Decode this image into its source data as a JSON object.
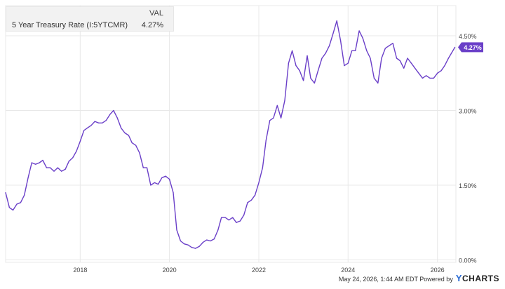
{
  "legend": {
    "column_header": "VAL",
    "series_name": "5 Year Treasury Rate (I:5YTCMR)",
    "series_value": "4.27%"
  },
  "footer": {
    "timestamp": "May 24, 2026, 1:44 AM EDT Powered by",
    "brand_y": "Y",
    "brand_rest": "CHARTS"
  },
  "colors": {
    "line": "#6a3fc8",
    "gridline": "#e8e8e8",
    "badge": "#6a3fc8"
  },
  "chart_data": {
    "type": "line",
    "title": "",
    "xlabel": "",
    "ylabel": "",
    "ylim": [
      -0.05,
      5.05
    ],
    "xlim": [
      "2016-05-01",
      "2026-06-01"
    ],
    "y_ticks": [
      {
        "value": 0.0,
        "label": "0.00%"
      },
      {
        "value": 1.5,
        "label": "1.50%"
      },
      {
        "value": 3.0,
        "label": "3.00%"
      },
      {
        "value": 4.5,
        "label": "4.50%"
      }
    ],
    "x_ticks": [
      {
        "value": "2018-01-01",
        "label": "2018"
      },
      {
        "value": "2020-01-01",
        "label": "2020"
      },
      {
        "value": "2022-01-01",
        "label": "2022"
      },
      {
        "value": "2024-01-01",
        "label": "2024"
      },
      {
        "value": "2026-01-01",
        "label": "2026"
      }
    ],
    "grid": {
      "horizontal": true,
      "vertical": true
    },
    "last_value_label": "4.27%",
    "series": [
      {
        "name": "5 Year Treasury Rate (I:5YTCMR)",
        "x": [
          "2016-05-01",
          "2016-06-01",
          "2016-07-01",
          "2016-08-01",
          "2016-09-01",
          "2016-10-01",
          "2016-11-01",
          "2016-12-01",
          "2017-01-01",
          "2017-02-01",
          "2017-03-01",
          "2017-04-01",
          "2017-05-01",
          "2017-06-01",
          "2017-07-01",
          "2017-08-01",
          "2017-09-01",
          "2017-10-01",
          "2017-11-01",
          "2017-12-01",
          "2018-01-01",
          "2018-02-01",
          "2018-03-01",
          "2018-04-01",
          "2018-05-01",
          "2018-06-01",
          "2018-07-01",
          "2018-08-01",
          "2018-09-01",
          "2018-10-01",
          "2018-11-01",
          "2018-12-01",
          "2019-01-01",
          "2019-02-01",
          "2019-03-01",
          "2019-04-01",
          "2019-05-01",
          "2019-06-01",
          "2019-07-01",
          "2019-08-01",
          "2019-09-01",
          "2019-10-01",
          "2019-11-01",
          "2019-12-01",
          "2020-01-01",
          "2020-02-01",
          "2020-03-01",
          "2020-04-01",
          "2020-05-01",
          "2020-06-01",
          "2020-07-01",
          "2020-08-01",
          "2020-09-01",
          "2020-10-01",
          "2020-11-01",
          "2020-12-01",
          "2021-01-01",
          "2021-02-01",
          "2021-03-01",
          "2021-04-01",
          "2021-05-01",
          "2021-06-01",
          "2021-07-01",
          "2021-08-01",
          "2021-09-01",
          "2021-10-01",
          "2021-11-01",
          "2021-12-01",
          "2022-01-01",
          "2022-02-01",
          "2022-03-01",
          "2022-04-01",
          "2022-05-01",
          "2022-06-01",
          "2022-07-01",
          "2022-08-01",
          "2022-09-01",
          "2022-10-01",
          "2022-11-01",
          "2022-12-01",
          "2023-01-01",
          "2023-02-01",
          "2023-03-01",
          "2023-04-01",
          "2023-05-01",
          "2023-06-01",
          "2023-07-01",
          "2023-08-01",
          "2023-09-01",
          "2023-10-01",
          "2023-11-01",
          "2023-12-01",
          "2024-01-01",
          "2024-02-01",
          "2024-03-01",
          "2024-04-01",
          "2024-05-01",
          "2024-06-01",
          "2024-07-01",
          "2024-08-01",
          "2024-09-01",
          "2024-10-01",
          "2024-11-01",
          "2024-12-01",
          "2025-01-01",
          "2025-02-01",
          "2025-03-01",
          "2025-04-01",
          "2025-05-01",
          "2025-06-01",
          "2025-07-01",
          "2025-08-01",
          "2025-09-01",
          "2025-10-01",
          "2025-11-01",
          "2025-12-01",
          "2026-01-01",
          "2026-02-01",
          "2026-03-01",
          "2026-04-01",
          "2026-05-24"
        ],
        "values": [
          1.35,
          1.05,
          1.0,
          1.12,
          1.15,
          1.3,
          1.65,
          1.95,
          1.92,
          1.95,
          2.0,
          1.85,
          1.85,
          1.78,
          1.85,
          1.78,
          1.82,
          1.98,
          2.05,
          2.18,
          2.38,
          2.6,
          2.65,
          2.7,
          2.78,
          2.75,
          2.75,
          2.8,
          2.92,
          3.0,
          2.85,
          2.65,
          2.55,
          2.5,
          2.35,
          2.3,
          2.15,
          1.85,
          1.85,
          1.5,
          1.55,
          1.52,
          1.65,
          1.68,
          1.62,
          1.35,
          0.6,
          0.38,
          0.32,
          0.3,
          0.25,
          0.23,
          0.27,
          0.35,
          0.4,
          0.38,
          0.42,
          0.6,
          0.85,
          0.85,
          0.8,
          0.85,
          0.75,
          0.78,
          0.9,
          1.15,
          1.2,
          1.3,
          1.55,
          1.85,
          2.4,
          2.8,
          2.85,
          3.1,
          2.85,
          3.2,
          3.95,
          4.2,
          3.9,
          3.8,
          3.6,
          4.1,
          3.65,
          3.55,
          3.8,
          4.05,
          4.15,
          4.3,
          4.55,
          4.8,
          4.4,
          3.9,
          3.95,
          4.2,
          4.2,
          4.6,
          4.45,
          4.2,
          4.05,
          3.65,
          3.55,
          4.05,
          4.25,
          4.3,
          4.35,
          4.05,
          4.0,
          3.85,
          4.05,
          3.95,
          3.85,
          3.75,
          3.65,
          3.7,
          3.65,
          3.65,
          3.75,
          3.8,
          3.9,
          4.05,
          4.27
        ]
      }
    ]
  }
}
